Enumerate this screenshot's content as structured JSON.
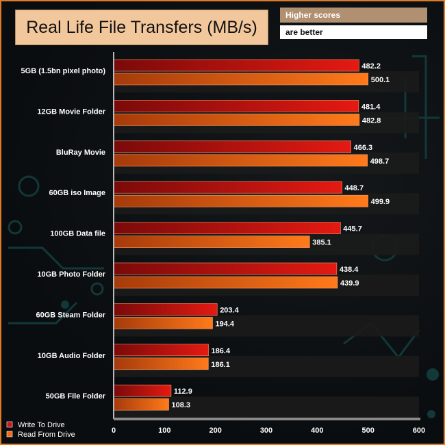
{
  "chart_data": {
    "type": "bar",
    "orientation": "horizontal",
    "title": "Real Life File Transfers (MB/s)",
    "note": [
      "Higher scores",
      "are better"
    ],
    "categories": [
      "5GB (1.5bn pixel photo)",
      "12GB Movie Folder",
      "BluRay Movie",
      "60GB iso Image",
      "100GB Data file",
      "10GB Photo Folder",
      "60GB Steam Folder",
      "10GB Audio Folder",
      "50GB File Folder"
    ],
    "series": [
      {
        "name": "Write To  Drive",
        "values": [
          482.2,
          481.4,
          466.3,
          448.7,
          445.7,
          438.4,
          203.4,
          186.4,
          112.9
        ],
        "value_labels": [
          "482.2",
          "481.4",
          "466.3",
          "448.7",
          "445.7",
          "438.4",
          "203.4",
          "186.4",
          "112.9"
        ],
        "color": "#d11414"
      },
      {
        "name": "Read From  Drive",
        "values": [
          500.1,
          482.8,
          498.7,
          499.9,
          385.1,
          439.9,
          194.4,
          186.1,
          108.3
        ],
        "value_labels": [
          "500.1",
          "482.8",
          "498.7",
          "499.9",
          "385.1",
          "439.9",
          "194.4",
          "186.1",
          "108.3"
        ],
        "color": "#f26a10"
      }
    ],
    "xlim": [
      0,
      600
    ],
    "xticks": [
      "0",
      "100",
      "200",
      "300",
      "400",
      "500",
      "600"
    ],
    "grid": false,
    "legend_position": "bottom-left"
  }
}
